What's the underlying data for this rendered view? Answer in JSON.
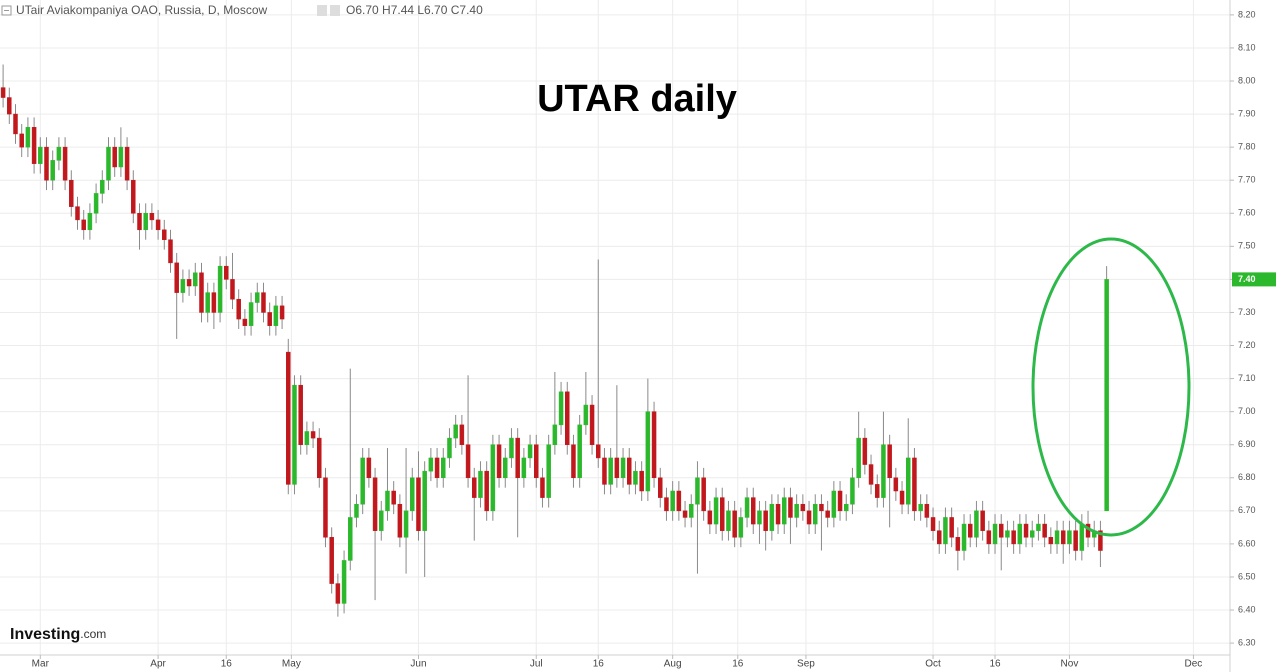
{
  "chart_data": {
    "type": "candlestick",
    "instrument": "UTair Aviakompaniya OAO, Russia, D, Moscow",
    "ohlc_label": "O6.70 H7.44 L6.70 C7.40",
    "title": "UTAR daily",
    "watermark": "Investing",
    "watermark_suffix": ".com",
    "last_price_label": "7.40",
    "up_color": "#2cb82c",
    "down_color": "#c0181c",
    "wick_color": "#8a8a8a",
    "grid": true,
    "ylim": [
      6.264,
      8.245
    ],
    "yticks": [
      {
        "value": 6.3,
        "label": "6.30"
      },
      {
        "value": 6.4,
        "label": "6.40"
      },
      {
        "value": 6.5,
        "label": "6.50"
      },
      {
        "value": 6.6,
        "label": "6.60"
      },
      {
        "value": 6.7,
        "label": "6.70"
      },
      {
        "value": 6.8,
        "label": "6.80"
      },
      {
        "value": 6.9,
        "label": "6.90"
      },
      {
        "value": 7.0,
        "label": "7.00"
      },
      {
        "value": 7.1,
        "label": "7.10"
      },
      {
        "value": 7.2,
        "label": "7.20"
      },
      {
        "value": 7.3,
        "label": "7.30"
      },
      {
        "value": 7.4,
        "label": "7.40"
      },
      {
        "value": 7.5,
        "label": "7.50"
      },
      {
        "value": 7.6,
        "label": "7.60"
      },
      {
        "value": 7.7,
        "label": "7.70"
      },
      {
        "value": 7.8,
        "label": "7.80"
      },
      {
        "value": 7.9,
        "label": "7.90"
      },
      {
        "value": 8.0,
        "label": "8.00"
      },
      {
        "value": 8.1,
        "label": "8.10"
      },
      {
        "value": 8.2,
        "label": "8.20"
      }
    ],
    "xlim": [
      -0.5,
      197.9
    ],
    "xticks": [
      {
        "value": 6,
        "label": "Mar"
      },
      {
        "value": 25,
        "label": "Apr"
      },
      {
        "value": 36,
        "label": "16"
      },
      {
        "value": 46.5,
        "label": "May"
      },
      {
        "value": 67,
        "label": "Jun"
      },
      {
        "value": 86,
        "label": "Jul"
      },
      {
        "value": 96,
        "label": "16"
      },
      {
        "value": 108,
        "label": "Aug"
      },
      {
        "value": 118.5,
        "label": "16"
      },
      {
        "value": 129.5,
        "label": "Sep"
      },
      {
        "value": 150,
        "label": "Oct"
      },
      {
        "value": 160,
        "label": "16"
      },
      {
        "value": 172,
        "label": "Nov"
      },
      {
        "value": 192,
        "label": "Dec"
      }
    ],
    "open": [
      7.98,
      7.95,
      7.9,
      7.84,
      7.8,
      7.86,
      7.75,
      7.8,
      7.7,
      7.76,
      7.8,
      7.7,
      7.62,
      7.58,
      7.55,
      7.6,
      7.66,
      7.7,
      7.8,
      7.74,
      7.8,
      7.7,
      7.6,
      7.55,
      7.6,
      7.58,
      7.55,
      7.52,
      7.45,
      7.36,
      7.4,
      7.38,
      7.42,
      7.3,
      7.36,
      7.3,
      7.44,
      7.4,
      7.34,
      7.28,
      7.26,
      7.33,
      7.36,
      7.3,
      7.26,
      7.32,
      7.18,
      6.78,
      7.08,
      6.9,
      6.94,
      6.92,
      6.8,
      6.62,
      6.48,
      6.42,
      6.55,
      6.68,
      6.72,
      6.86,
      6.8,
      6.64,
      6.7,
      6.76,
      6.72,
      6.62,
      6.7,
      6.8,
      6.64,
      6.82,
      6.86,
      6.8,
      6.86,
      6.92,
      6.96,
      6.9,
      6.8,
      6.74,
      6.82,
      6.7,
      6.9,
      6.8,
      6.86,
      6.92,
      6.8,
      6.86,
      6.9,
      6.8,
      6.74,
      6.9,
      6.96,
      7.06,
      6.9,
      6.8,
      6.96,
      7.02,
      6.9,
      6.86,
      6.78,
      6.86,
      6.8,
      6.86,
      6.78,
      6.82,
      6.76,
      7.0,
      6.8,
      6.74,
      6.7,
      6.76,
      6.7,
      6.68,
      6.72,
      6.8,
      6.7,
      6.66,
      6.74,
      6.64,
      6.7,
      6.62,
      6.68,
      6.74,
      6.66,
      6.7,
      6.64,
      6.72,
      6.66,
      6.74,
      6.68,
      6.72,
      6.7,
      6.66,
      6.72,
      6.7,
      6.68,
      6.76,
      6.7,
      6.72,
      6.8,
      6.92,
      6.84,
      6.78,
      6.74,
      6.9,
      6.8,
      6.76,
      6.72,
      6.86,
      6.7,
      6.72,
      6.68,
      6.64,
      6.6,
      6.68,
      6.62,
      6.58,
      6.66,
      6.62,
      6.7,
      6.64,
      6.6,
      6.66,
      6.62,
      6.64,
      6.6,
      6.66,
      6.62,
      6.64,
      6.66,
      6.62,
      6.6,
      6.64,
      6.6,
      6.64,
      6.58,
      6.66,
      6.62,
      6.64,
      6.7
    ],
    "high": [
      8.05,
      7.98,
      7.93,
      7.87,
      7.89,
      7.89,
      7.83,
      7.83,
      7.79,
      7.83,
      7.83,
      7.73,
      7.65,
      7.61,
      7.63,
      7.69,
      7.73,
      7.83,
      7.83,
      7.86,
      7.83,
      7.73,
      7.63,
      7.63,
      7.63,
      7.61,
      7.58,
      7.55,
      7.48,
      7.43,
      7.43,
      7.45,
      7.45,
      7.39,
      7.39,
      7.47,
      7.47,
      7.48,
      7.37,
      7.31,
      7.36,
      7.39,
      7.39,
      7.33,
      7.35,
      7.35,
      7.22,
      7.11,
      7.11,
      6.97,
      6.97,
      6.95,
      6.83,
      6.65,
      6.51,
      6.58,
      7.13,
      6.75,
      6.89,
      6.89,
      6.83,
      6.73,
      6.89,
      6.79,
      6.75,
      6.89,
      6.83,
      6.88,
      6.85,
      6.89,
      6.89,
      6.89,
      6.95,
      6.99,
      6.99,
      7.11,
      6.83,
      6.85,
      6.85,
      6.93,
      6.93,
      6.89,
      6.95,
      6.95,
      6.89,
      6.93,
      6.93,
      6.83,
      6.93,
      7.12,
      7.09,
      7.09,
      6.93,
      6.99,
      7.12,
      7.05,
      7.46,
      6.89,
      6.89,
      7.08,
      6.89,
      6.89,
      6.85,
      6.85,
      7.1,
      7.03,
      6.83,
      6.77,
      6.79,
      6.79,
      6.73,
      6.75,
      6.85,
      6.83,
      6.73,
      6.77,
      6.77,
      6.73,
      6.73,
      6.71,
      6.77,
      6.77,
      6.73,
      6.73,
      6.75,
      6.75,
      6.77,
      6.77,
      6.75,
      6.75,
      6.73,
      6.75,
      6.75,
      6.73,
      6.79,
      6.79,
      6.75,
      6.83,
      7.0,
      6.95,
      6.87,
      6.81,
      7.0,
      6.93,
      6.83,
      6.79,
      6.98,
      6.89,
      6.75,
      6.75,
      6.71,
      6.67,
      6.71,
      6.71,
      6.65,
      6.69,
      6.69,
      6.73,
      6.73,
      6.67,
      6.69,
      6.69,
      6.67,
      6.67,
      6.69,
      6.69,
      6.67,
      6.69,
      6.69,
      6.65,
      6.67,
      6.67,
      6.67,
      6.67,
      6.69,
      6.7,
      6.67,
      6.67,
      7.44
    ],
    "low": [
      7.92,
      7.87,
      7.81,
      7.77,
      7.77,
      7.72,
      7.72,
      7.67,
      7.67,
      7.73,
      7.67,
      7.59,
      7.55,
      7.52,
      7.52,
      7.57,
      7.63,
      7.67,
      7.71,
      7.71,
      7.67,
      7.57,
      7.49,
      7.52,
      7.55,
      7.52,
      7.49,
      7.42,
      7.22,
      7.33,
      7.35,
      7.35,
      7.27,
      7.27,
      7.25,
      7.27,
      7.37,
      7.31,
      7.25,
      7.23,
      7.23,
      7.3,
      7.27,
      7.23,
      7.23,
      7.25,
      6.75,
      6.75,
      6.87,
      6.87,
      6.89,
      6.77,
      6.59,
      6.45,
      6.38,
      6.39,
      6.52,
      6.65,
      6.69,
      6.77,
      6.43,
      6.61,
      6.67,
      6.69,
      6.59,
      6.51,
      6.67,
      6.61,
      6.5,
      6.79,
      6.77,
      6.77,
      6.83,
      6.89,
      6.87,
      6.77,
      6.61,
      6.71,
      6.67,
      6.67,
      6.77,
      6.77,
      6.83,
      6.62,
      6.77,
      6.83,
      6.77,
      6.71,
      6.71,
      6.87,
      6.93,
      6.87,
      6.77,
      6.77,
      6.93,
      6.87,
      6.83,
      6.75,
      6.75,
      6.77,
      6.77,
      6.75,
      6.75,
      6.73,
      6.73,
      6.77,
      6.71,
      6.67,
      6.67,
      6.67,
      6.65,
      6.65,
      6.51,
      6.67,
      6.63,
      6.63,
      6.61,
      6.61,
      6.59,
      6.59,
      6.65,
      6.63,
      6.6,
      6.58,
      6.61,
      6.63,
      6.63,
      6.6,
      6.65,
      6.67,
      6.63,
      6.63,
      6.58,
      6.65,
      6.65,
      6.67,
      6.67,
      6.69,
      6.77,
      6.81,
      6.75,
      6.71,
      6.71,
      6.65,
      6.73,
      6.69,
      6.69,
      6.67,
      6.67,
      6.65,
      6.61,
      6.57,
      6.57,
      6.59,
      6.52,
      6.55,
      6.59,
      6.59,
      6.61,
      6.57,
      6.57,
      6.52,
      6.59,
      6.57,
      6.57,
      6.59,
      6.59,
      6.61,
      6.59,
      6.57,
      6.57,
      6.54,
      6.57,
      6.55,
      6.55,
      6.59,
      6.59,
      6.53,
      6.7
    ],
    "close": [
      7.95,
      7.9,
      7.84,
      7.8,
      7.86,
      7.75,
      7.8,
      7.7,
      7.76,
      7.8,
      7.7,
      7.62,
      7.58,
      7.55,
      7.6,
      7.66,
      7.7,
      7.8,
      7.74,
      7.8,
      7.7,
      7.6,
      7.55,
      7.6,
      7.58,
      7.55,
      7.52,
      7.45,
      7.36,
      7.4,
      7.38,
      7.42,
      7.3,
      7.36,
      7.3,
      7.44,
      7.4,
      7.34,
      7.28,
      7.26,
      7.33,
      7.36,
      7.3,
      7.26,
      7.32,
      7.28,
      6.78,
      7.08,
      6.9,
      6.94,
      6.92,
      6.8,
      6.62,
      6.48,
      6.42,
      6.55,
      6.68,
      6.72,
      6.86,
      6.8,
      6.64,
      6.7,
      6.76,
      6.72,
      6.62,
      6.7,
      6.8,
      6.64,
      6.82,
      6.86,
      6.8,
      6.86,
      6.92,
      6.96,
      6.9,
      6.8,
      6.74,
      6.82,
      6.7,
      6.9,
      6.8,
      6.86,
      6.92,
      6.8,
      6.86,
      6.9,
      6.8,
      6.74,
      6.9,
      6.96,
      7.06,
      6.9,
      6.8,
      6.96,
      7.02,
      6.9,
      6.86,
      6.78,
      6.86,
      6.8,
      6.86,
      6.78,
      6.82,
      6.76,
      7.0,
      6.8,
      6.74,
      6.7,
      6.76,
      6.7,
      6.68,
      6.72,
      6.8,
      6.7,
      6.66,
      6.74,
      6.64,
      6.7,
      6.62,
      6.68,
      6.74,
      6.66,
      6.7,
      6.64,
      6.72,
      6.66,
      6.74,
      6.68,
      6.72,
      6.7,
      6.66,
      6.72,
      6.7,
      6.68,
      6.76,
      6.7,
      6.72,
      6.8,
      6.92,
      6.84,
      6.78,
      6.74,
      6.9,
      6.8,
      6.76,
      6.72,
      6.86,
      6.7,
      6.72,
      6.68,
      6.64,
      6.6,
      6.68,
      6.62,
      6.58,
      6.66,
      6.62,
      6.7,
      6.64,
      6.6,
      6.66,
      6.62,
      6.64,
      6.6,
      6.66,
      6.62,
      6.64,
      6.66,
      6.62,
      6.6,
      6.64,
      6.6,
      6.64,
      6.58,
      6.66,
      6.62,
      6.64,
      6.58,
      7.4
    ]
  }
}
